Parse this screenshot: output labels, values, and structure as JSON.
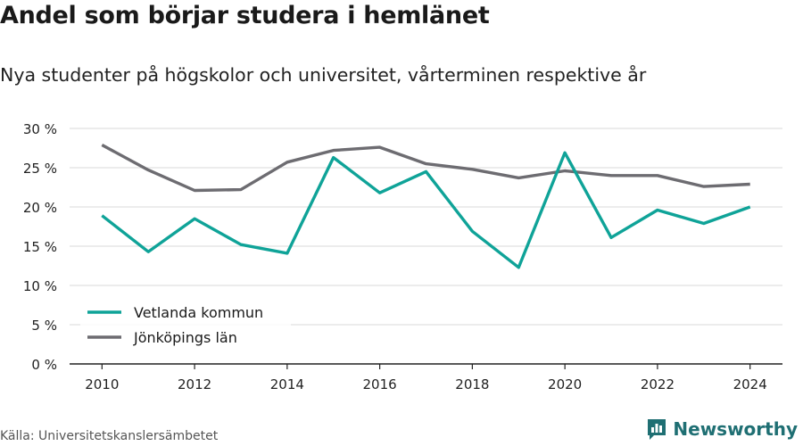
{
  "title": "Andel som börjar studera i hemlänet",
  "subtitle": "Nya studenter på högskolor och universitet, vårterminen respektive år",
  "source": "Källa: Universitetskanslersämbetet",
  "brand": "Newsworthy",
  "colors": {
    "teal": "#0fa398",
    "gray": "#6d6c71",
    "brand": "#1f6f73",
    "grid": "#d9d9d9",
    "axis": "#222222"
  },
  "chart_data": {
    "type": "line",
    "x": [
      2010,
      2011,
      2012,
      2013,
      2014,
      2015,
      2016,
      2017,
      2018,
      2019,
      2020,
      2021,
      2022,
      2023,
      2024
    ],
    "x_ticks": [
      2010,
      2012,
      2014,
      2016,
      2018,
      2020,
      2022,
      2024
    ],
    "x_range": [
      2009.3,
      2024.7
    ],
    "y_ticks": [
      0,
      5,
      10,
      15,
      20,
      25,
      30
    ],
    "y_tick_labels": [
      "0 %",
      "5 %",
      "10 %",
      "15 %",
      "20 %",
      "25 %",
      "30 %"
    ],
    "ylim": [
      0,
      30
    ],
    "grid": true,
    "legend": "bottom-left",
    "series": [
      {
        "name": "Vetlanda kommun",
        "color": "#0fa398",
        "values": [
          18.9,
          14.3,
          18.5,
          15.2,
          14.1,
          26.3,
          21.8,
          24.5,
          16.9,
          12.3,
          26.9,
          16.1,
          19.6,
          17.9,
          20.0
        ]
      },
      {
        "name": "Jönköpings län",
        "color": "#6d6c71",
        "values": [
          27.9,
          24.7,
          22.1,
          22.2,
          25.7,
          27.2,
          27.6,
          25.5,
          24.8,
          23.7,
          24.6,
          24.0,
          24.0,
          22.6,
          22.9
        ]
      }
    ]
  }
}
